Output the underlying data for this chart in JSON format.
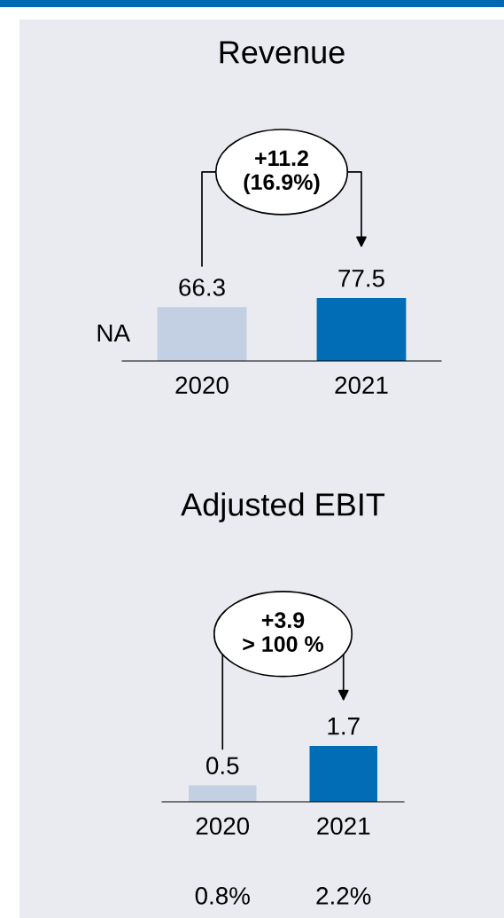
{
  "chart_data": [
    {
      "type": "bar",
      "title": "Revenue",
      "categories": [
        "2020",
        "2021"
      ],
      "values": [
        66.3,
        77.5
      ],
      "colors": [
        "#c3cfe2",
        "#006db6"
      ],
      "data_labels": true,
      "grid": false,
      "legend": false,
      "tick_labels": "x",
      "annotations": [
        "+11.2\n(16.9%)",
        "NA"
      ]
    },
    {
      "type": "bar",
      "title": "Adjusted EBIT",
      "categories": [
        "2020",
        "2021"
      ],
      "values": [
        0.5,
        1.7
      ],
      "colors": [
        "#c3cfe2",
        "#006db6"
      ],
      "data_labels": true,
      "grid": false,
      "legend": false,
      "tick_labels": "x",
      "annotations": [
        "+3.9\n> 100 %",
        "0.8%",
        "2.2%"
      ]
    }
  ]
}
